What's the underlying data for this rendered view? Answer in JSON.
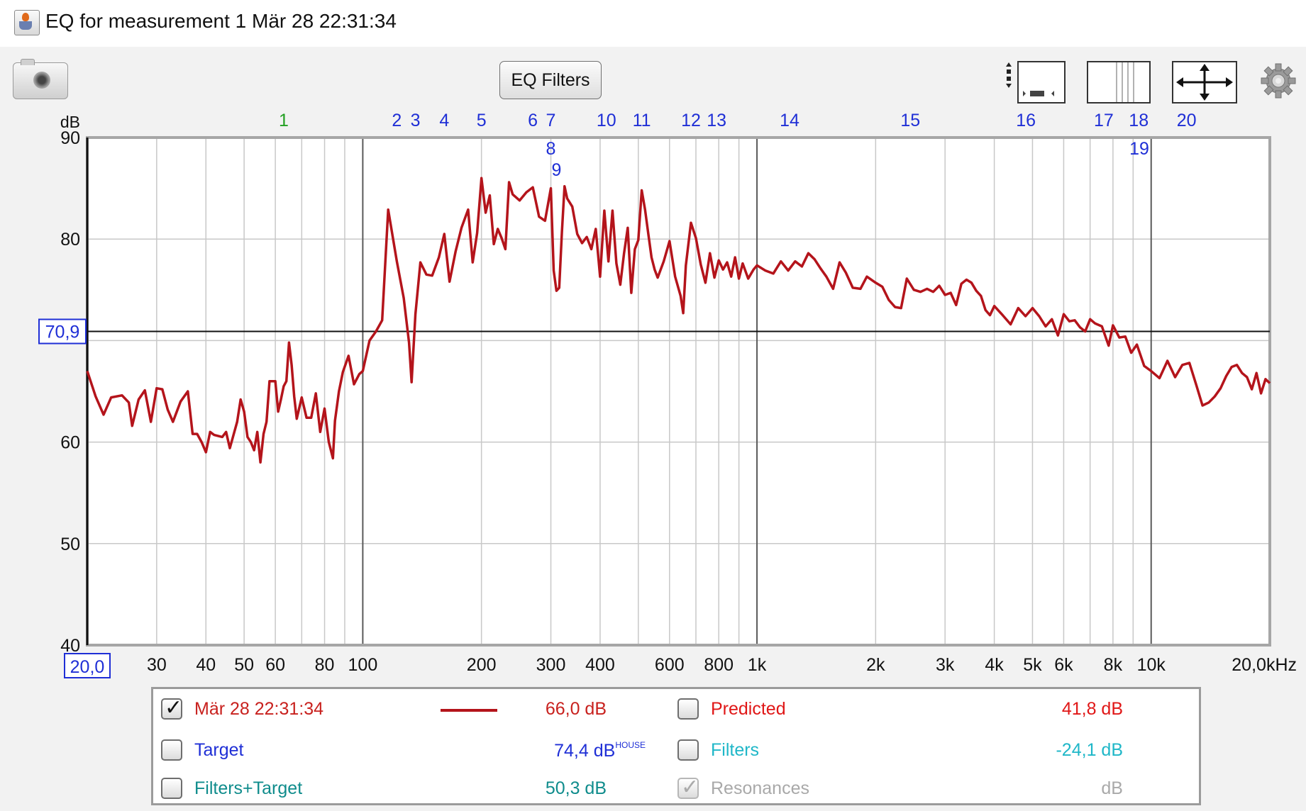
{
  "window": {
    "title": "EQ for measurement 1 Mär 28 22:31:34",
    "app_icon": "java-cup-icon"
  },
  "toolbar": {
    "camera_icon": "camera-icon",
    "eq_filters_label": "EQ Filters",
    "vertical_zoom_icon": "vertical-zoom-icon",
    "horizontal_zoom_icon": "horizontal-zoom-icon",
    "fit_icon": "fit-axes-icon",
    "settings_icon": "gear-icon"
  },
  "chart_data": {
    "type": "line",
    "title": "",
    "ylabel": "dB",
    "xlabel": "",
    "x_scale": "log",
    "xlim": [
      20,
      20000
    ],
    "ylim": [
      40,
      90
    ],
    "grid": true,
    "y_ticks": [
      "40",
      "50",
      "60",
      "80",
      "90"
    ],
    "x_ticks": [
      {
        "v": 30,
        "label": "30"
      },
      {
        "v": 40,
        "label": "40"
      },
      {
        "v": 50,
        "label": "50"
      },
      {
        "v": 60,
        "label": "60"
      },
      {
        "v": 80,
        "label": "80"
      },
      {
        "v": 100,
        "label": "100"
      },
      {
        "v": 200,
        "label": "200"
      },
      {
        "v": 300,
        "label": "300"
      },
      {
        "v": 400,
        "label": "400"
      },
      {
        "v": 600,
        "label": "600"
      },
      {
        "v": 800,
        "label": "800"
      },
      {
        "v": 1000,
        "label": "1k"
      },
      {
        "v": 2000,
        "label": "2k"
      },
      {
        "v": 3000,
        "label": "3k"
      },
      {
        "v": 4000,
        "label": "4k"
      },
      {
        "v": 5000,
        "label": "5k"
      },
      {
        "v": 6000,
        "label": "6k"
      },
      {
        "v": 8000,
        "label": "8k"
      },
      {
        "v": 10000,
        "label": "10k"
      }
    ],
    "x_end_label": "20,0kHz",
    "x_start_label": "20,0",
    "cursor": {
      "y": 70.9,
      "label": "70,9"
    },
    "line_color": "#b4141b",
    "filter_markers": [
      {
        "label": "1",
        "f": 63,
        "row": 0,
        "color": "#22a022"
      },
      {
        "label": "2",
        "f": 122,
        "row": 0,
        "color": "#1f2fd6"
      },
      {
        "label": "3",
        "f": 136,
        "row": 0,
        "color": "#1f2fd6"
      },
      {
        "label": "4",
        "f": 161,
        "row": 0,
        "color": "#1f2fd6"
      },
      {
        "label": "5",
        "f": 200,
        "row": 0,
        "color": "#1f2fd6"
      },
      {
        "label": "6",
        "f": 270,
        "row": 0,
        "color": "#1f2fd6"
      },
      {
        "label": "7",
        "f": 300,
        "row": 0,
        "color": "#1f2fd6"
      },
      {
        "label": "8",
        "f": 300,
        "row": 1,
        "color": "#1f2fd6"
      },
      {
        "label": "9",
        "f": 310,
        "row": 2,
        "color": "#1f2fd6"
      },
      {
        "label": "10",
        "f": 415,
        "row": 0,
        "color": "#1f2fd6"
      },
      {
        "label": "11",
        "f": 510,
        "row": 0,
        "color": "#1f2fd6"
      },
      {
        "label": "12",
        "f": 680,
        "row": 0,
        "color": "#1f2fd6"
      },
      {
        "label": "13",
        "f": 790,
        "row": 0,
        "color": "#1f2fd6"
      },
      {
        "label": "14",
        "f": 1210,
        "row": 0,
        "color": "#1f2fd6"
      },
      {
        "label": "15",
        "f": 2450,
        "row": 0,
        "color": "#1f2fd6"
      },
      {
        "label": "16",
        "f": 4810,
        "row": 0,
        "color": "#1f2fd6"
      },
      {
        "label": "17",
        "f": 7580,
        "row": 0,
        "color": "#1f2fd6"
      },
      {
        "label": "18",
        "f": 9300,
        "row": 0,
        "color": "#1f2fd6"
      },
      {
        "label": "19",
        "f": 9330,
        "row": 1,
        "color": "#1f2fd6"
      },
      {
        "label": "20",
        "f": 12300,
        "row": 0,
        "color": "#1f2fd6"
      }
    ],
    "series": [
      {
        "name": "Mär 28 22:31:34",
        "points": [
          [
            20,
            67
          ],
          [
            21,
            64.5
          ],
          [
            22,
            62.7
          ],
          [
            23,
            64.4
          ],
          [
            24.5,
            64.6
          ],
          [
            25.5,
            63.9
          ],
          [
            26,
            61.6
          ],
          [
            27,
            64.2
          ],
          [
            28,
            65.1
          ],
          [
            29,
            62
          ],
          [
            30,
            65.3
          ],
          [
            31,
            65.2
          ],
          [
            32,
            63.2
          ],
          [
            33,
            62
          ],
          [
            34.5,
            64
          ],
          [
            36,
            65
          ],
          [
            37,
            60.8
          ],
          [
            38,
            60.8
          ],
          [
            39,
            60
          ],
          [
            40,
            59
          ],
          [
            41,
            61
          ],
          [
            42,
            60.7
          ],
          [
            44,
            60.5
          ],
          [
            45,
            61
          ],
          [
            46,
            59.4
          ],
          [
            48,
            62
          ],
          [
            49,
            64.2
          ],
          [
            50,
            63
          ],
          [
            51,
            60.5
          ],
          [
            52,
            60
          ],
          [
            53,
            59.2
          ],
          [
            54,
            61
          ],
          [
            55,
            58
          ],
          [
            56,
            60.8
          ],
          [
            57,
            62
          ],
          [
            58,
            66
          ],
          [
            60,
            66
          ],
          [
            61,
            63
          ],
          [
            62,
            64.2
          ],
          [
            63,
            65.5
          ],
          [
            64,
            66
          ],
          [
            65,
            69.8
          ],
          [
            66,
            67.6
          ],
          [
            67,
            64.5
          ],
          [
            68,
            62.3
          ],
          [
            70,
            64.4
          ],
          [
            72,
            62.4
          ],
          [
            74,
            62.4
          ],
          [
            76,
            64.8
          ],
          [
            78,
            61
          ],
          [
            80,
            63.3
          ],
          [
            82,
            60
          ],
          [
            84,
            58.4
          ],
          [
            85,
            62.1
          ],
          [
            87,
            65
          ],
          [
            89,
            66.9
          ],
          [
            92,
            68.5
          ],
          [
            95,
            65.7
          ],
          [
            98,
            66.7
          ],
          [
            100,
            67
          ],
          [
            104,
            70
          ],
          [
            108,
            70.9
          ],
          [
            112,
            72
          ],
          [
            116,
            82.9
          ],
          [
            122,
            77.8
          ],
          [
            127,
            74.2
          ],
          [
            131,
            69.8
          ],
          [
            133,
            65.9
          ],
          [
            136,
            72.6
          ],
          [
            140,
            77.7
          ],
          [
            145,
            76.5
          ],
          [
            150,
            76.4
          ],
          [
            156,
            78.2
          ],
          [
            161,
            80.5
          ],
          [
            166,
            75.8
          ],
          [
            172,
            78.8
          ],
          [
            178,
            81.1
          ],
          [
            185,
            82.9
          ],
          [
            190,
            77.7
          ],
          [
            195,
            80.6
          ],
          [
            200,
            86
          ],
          [
            205,
            82.6
          ],
          [
            210,
            84.3
          ],
          [
            215,
            79.5
          ],
          [
            220,
            81
          ],
          [
            225,
            80.1
          ],
          [
            230,
            79
          ],
          [
            235,
            85.6
          ],
          [
            240,
            84.4
          ],
          [
            250,
            83.8
          ],
          [
            260,
            84.6
          ],
          [
            270,
            85.1
          ],
          [
            280,
            82.2
          ],
          [
            290,
            81.8
          ],
          [
            300,
            85
          ],
          [
            305,
            76.9
          ],
          [
            310,
            74.9
          ],
          [
            315,
            75.2
          ],
          [
            320,
            80.7
          ],
          [
            325,
            85.2
          ],
          [
            330,
            84
          ],
          [
            340,
            83.2
          ],
          [
            350,
            80.5
          ],
          [
            360,
            79.6
          ],
          [
            370,
            80.2
          ],
          [
            380,
            79
          ],
          [
            390,
            81
          ],
          [
            400,
            76.3
          ],
          [
            410,
            82.8
          ],
          [
            420,
            77.8
          ],
          [
            430,
            82.8
          ],
          [
            440,
            77.6
          ],
          [
            450,
            75.5
          ],
          [
            460,
            78.6
          ],
          [
            470,
            81.1
          ],
          [
            480,
            74.7
          ],
          [
            490,
            79
          ],
          [
            500,
            79.9
          ],
          [
            510,
            84.8
          ],
          [
            520,
            82.9
          ],
          [
            530,
            80.5
          ],
          [
            540,
            78.2
          ],
          [
            550,
            77
          ],
          [
            560,
            76.2
          ],
          [
            580,
            77.8
          ],
          [
            600,
            79.8
          ],
          [
            620,
            76.3
          ],
          [
            640,
            74.4
          ],
          [
            650,
            72.7
          ],
          [
            660,
            77.4
          ],
          [
            680,
            81.6
          ],
          [
            700,
            80.1
          ],
          [
            720,
            77.5
          ],
          [
            740,
            75.7
          ],
          [
            760,
            78.6
          ],
          [
            780,
            76.2
          ],
          [
            800,
            77.9
          ],
          [
            820,
            77
          ],
          [
            840,
            77.7
          ],
          [
            860,
            76.3
          ],
          [
            880,
            78.2
          ],
          [
            900,
            76.1
          ],
          [
            920,
            77.6
          ],
          [
            950,
            76.1
          ],
          [
            980,
            77
          ],
          [
            1000,
            77.4
          ],
          [
            1050,
            76.9
          ],
          [
            1100,
            76.6
          ],
          [
            1150,
            77.8
          ],
          [
            1200,
            76.9
          ],
          [
            1250,
            77.8
          ],
          [
            1300,
            77.3
          ],
          [
            1350,
            78.6
          ],
          [
            1400,
            78
          ],
          [
            1450,
            77.1
          ],
          [
            1500,
            76.3
          ],
          [
            1560,
            75.1
          ],
          [
            1620,
            77.7
          ],
          [
            1680,
            76.7
          ],
          [
            1750,
            75.2
          ],
          [
            1830,
            75.1
          ],
          [
            1900,
            76.3
          ],
          [
            2000,
            75.7
          ],
          [
            2080,
            75.3
          ],
          [
            2160,
            74
          ],
          [
            2240,
            73.3
          ],
          [
            2320,
            73.2
          ],
          [
            2400,
            76.1
          ],
          [
            2500,
            75
          ],
          [
            2600,
            74.8
          ],
          [
            2700,
            75.1
          ],
          [
            2800,
            74.8
          ],
          [
            2900,
            75.4
          ],
          [
            3000,
            74.5
          ],
          [
            3100,
            74.7
          ],
          [
            3200,
            73.5
          ],
          [
            3300,
            75.6
          ],
          [
            3400,
            76
          ],
          [
            3500,
            75.7
          ],
          [
            3600,
            74.9
          ],
          [
            3700,
            74.4
          ],
          [
            3800,
            73
          ],
          [
            3900,
            72.5
          ],
          [
            4000,
            73.4
          ],
          [
            4200,
            72.5
          ],
          [
            4400,
            71.6
          ],
          [
            4600,
            73.2
          ],
          [
            4800,
            72.4
          ],
          [
            5000,
            73.2
          ],
          [
            5200,
            72.4
          ],
          [
            5400,
            71.4
          ],
          [
            5600,
            72.1
          ],
          [
            5800,
            70.5
          ],
          [
            6000,
            72.6
          ],
          [
            6200,
            71.9
          ],
          [
            6400,
            72
          ],
          [
            6600,
            71.3
          ],
          [
            6800,
            70.9
          ],
          [
            7000,
            72.1
          ],
          [
            7200,
            71.7
          ],
          [
            7500,
            71.4
          ],
          [
            7800,
            69.5
          ],
          [
            8000,
            71.5
          ],
          [
            8300,
            70.3
          ],
          [
            8600,
            70.4
          ],
          [
            8900,
            68.8
          ],
          [
            9200,
            69.6
          ],
          [
            9600,
            67.5
          ],
          [
            10000,
            67
          ],
          [
            10500,
            66.3
          ],
          [
            11000,
            68
          ],
          [
            11500,
            66.4
          ],
          [
            12000,
            67.6
          ],
          [
            12500,
            67.8
          ],
          [
            13000,
            65.7
          ],
          [
            13500,
            63.6
          ],
          [
            14000,
            63.9
          ],
          [
            14500,
            64.5
          ],
          [
            15000,
            65.3
          ],
          [
            15500,
            66.5
          ],
          [
            16000,
            67.4
          ],
          [
            16500,
            67.6
          ],
          [
            17000,
            66.8
          ],
          [
            17500,
            66.4
          ],
          [
            18000,
            65.2
          ],
          [
            18500,
            66.8
          ],
          [
            19000,
            64.8
          ],
          [
            19500,
            66.2
          ],
          [
            20000,
            65.8
          ]
        ]
      }
    ]
  },
  "legend": {
    "rows": [
      {
        "left": {
          "checked": true,
          "disabled": false,
          "label": "Mär 28 22:31:34",
          "color": "#c8211e",
          "show_line": true,
          "value": "66,0 dB",
          "value_color": "#c8211e"
        },
        "right": {
          "checked": false,
          "disabled": false,
          "label": "Predicted",
          "color": "#e01717",
          "value": "41,8 dB",
          "value_color": "#e01717"
        }
      },
      {
        "left": {
          "checked": false,
          "disabled": false,
          "label": "Target",
          "color": "#1f2fd6",
          "value": "74,4 dB",
          "value_sup": "HOUSE",
          "value_color": "#1f2fd6"
        },
        "right": {
          "checked": false,
          "disabled": false,
          "label": "Filters",
          "color": "#1fb7c8",
          "value": "-24,1 dB",
          "value_color": "#1fb7c8"
        }
      },
      {
        "left": {
          "checked": false,
          "disabled": false,
          "label": "Filters+Target",
          "color": "#0f8c8c",
          "value": "50,3 dB",
          "value_color": "#0f8c8c"
        },
        "right": {
          "checked": true,
          "disabled": true,
          "label": "Resonances",
          "color": "#a9a9a9",
          "value": "dB",
          "value_color": "#a9a9a9"
        }
      }
    ]
  }
}
